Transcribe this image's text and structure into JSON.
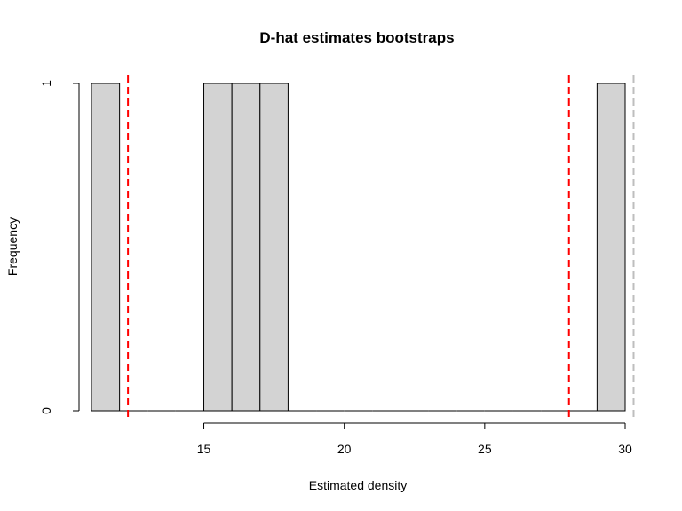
{
  "chart_data": {
    "type": "bar",
    "title": "D-hat estimates bootstraps",
    "xlabel": "Estimated density",
    "ylabel": "Frequency",
    "xlim": [
      11,
      30
    ],
    "ylim": [
      0,
      1
    ],
    "x_ticks": [
      15,
      20,
      25,
      30
    ],
    "y_ticks": [
      0,
      1
    ],
    "bins": [
      {
        "from": 11,
        "to": 12,
        "count": 1
      },
      {
        "from": 12,
        "to": 13,
        "count": 0
      },
      {
        "from": 13,
        "to": 14,
        "count": 0
      },
      {
        "from": 14,
        "to": 15,
        "count": 0
      },
      {
        "from": 15,
        "to": 16,
        "count": 1
      },
      {
        "from": 16,
        "to": 17,
        "count": 1
      },
      {
        "from": 17,
        "to": 18,
        "count": 1
      },
      {
        "from": 18,
        "to": 19,
        "count": 0
      },
      {
        "from": 19,
        "to": 20,
        "count": 0
      },
      {
        "from": 20,
        "to": 21,
        "count": 0
      },
      {
        "from": 21,
        "to": 22,
        "count": 0
      },
      {
        "from": 22,
        "to": 23,
        "count": 0
      },
      {
        "from": 23,
        "to": 24,
        "count": 0
      },
      {
        "from": 24,
        "to": 25,
        "count": 0
      },
      {
        "from": 25,
        "to": 26,
        "count": 0
      },
      {
        "from": 26,
        "to": 27,
        "count": 0
      },
      {
        "from": 27,
        "to": 28,
        "count": 0
      },
      {
        "from": 28,
        "to": 29,
        "count": 0
      },
      {
        "from": 29,
        "to": 30,
        "count": 1
      }
    ],
    "reference_lines": [
      {
        "x": 12.3,
        "color": "#ff0000",
        "style": "dashed"
      },
      {
        "x": 28.0,
        "color": "#ff0000",
        "style": "dashed"
      },
      {
        "x": 30.3,
        "color": "#bebebe",
        "style": "dashed"
      }
    ],
    "bar_fill": "#d3d3d3",
    "bar_stroke": "#000000",
    "grid": false,
    "legend": "none"
  }
}
